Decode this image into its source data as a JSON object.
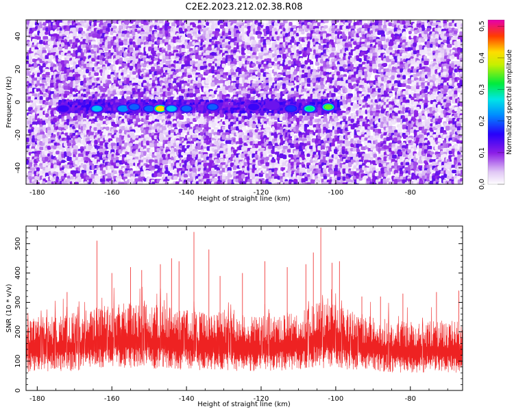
{
  "title": "C2E2.2023.212.02.38.R08",
  "colors": {
    "snr_line": "#ee2222",
    "background": "#ffffff",
    "axis": "#000000"
  },
  "colorbar": {
    "label": "Normalized spectral amplitude",
    "range": [
      0.0,
      0.52
    ],
    "tick_labels": [
      "0.0",
      "0.1",
      "0.2",
      "0.3",
      "0.4",
      "0.5"
    ],
    "ticks": [
      0.0,
      0.1,
      0.2,
      0.3,
      0.4,
      0.5
    ]
  },
  "chart_data": [
    {
      "type": "heatmap",
      "title": "C2E2.2023.212.02.38.R08",
      "xlabel": "Height of straight line (km)",
      "ylabel": "Frequency (Hz)",
      "xlim": [
        -183,
        -66
      ],
      "ylim": [
        -50,
        50
      ],
      "x_ticks": [
        -180,
        -160,
        -140,
        -120,
        -100,
        -80
      ],
      "x_tick_labels": [
        "-180",
        "-160",
        "-140",
        "-120",
        "-100",
        "-80"
      ],
      "y_ticks": [
        -40,
        -20,
        0,
        20,
        40
      ],
      "y_tick_labels": [
        "-40",
        "-20",
        "0",
        "20",
        "40"
      ],
      "colormap": "rainbow (white → purple → blue → cyan → green → yellow → red → magenta)",
      "features": [
        {
          "description": "band of high amplitude near 0 Hz",
          "x_range": [
            -174,
            -99
          ],
          "frequency_hz": -3,
          "peak_amplitude": 0.42
        },
        {
          "description": "uniform background noise",
          "amplitude_range": [
            0.0,
            0.12
          ]
        }
      ],
      "hot_spots": [
        {
          "x": -173,
          "f": -4,
          "a": 0.15
        },
        {
          "x": -164,
          "f": -4,
          "a": 0.25
        },
        {
          "x": -157,
          "f": -4,
          "a": 0.22
        },
        {
          "x": -154,
          "f": -3,
          "a": 0.2
        },
        {
          "x": -150,
          "f": -4,
          "a": 0.2
        },
        {
          "x": -147,
          "f": -4,
          "a": 0.42
        },
        {
          "x": -144,
          "f": -4,
          "a": 0.25
        },
        {
          "x": -140,
          "f": -4,
          "a": 0.2
        },
        {
          "x": -133,
          "f": -3,
          "a": 0.2
        },
        {
          "x": -122,
          "f": -3,
          "a": 0.15
        },
        {
          "x": -117,
          "f": -2,
          "a": 0.12
        },
        {
          "x": -112,
          "f": -4,
          "a": 0.18
        },
        {
          "x": -107,
          "f": -4,
          "a": 0.3
        },
        {
          "x": -102,
          "f": -3,
          "a": 0.35
        }
      ]
    },
    {
      "type": "line",
      "xlabel": "Height of straight line (km)",
      "ylabel": "SNR (10 * v/v)",
      "xlim": [
        -183,
        -66
      ],
      "ylim": [
        0,
        560
      ],
      "x_ticks": [
        -180,
        -160,
        -140,
        -120,
        -100,
        -80
      ],
      "x_tick_labels": [
        "-180",
        "-160",
        "-140",
        "-120",
        "-100",
        "-80"
      ],
      "y_ticks": [
        0,
        100,
        200,
        300,
        400,
        500
      ],
      "y_tick_labels": [
        "0",
        "100",
        "200",
        "300",
        "400",
        "500"
      ],
      "series": [
        {
          "color": "#ee2222",
          "x_range": [
            -183,
            -66
          ],
          "baseline_envelope": {
            "low": 60,
            "high": 240
          },
          "profile": [
            [
              -183,
              180
            ],
            [
              -175,
              185
            ],
            [
              -170,
              190
            ],
            [
              -165,
              200
            ],
            [
              -160,
              210
            ],
            [
              -155,
              215
            ],
            [
              -150,
              210
            ],
            [
              -145,
              205
            ],
            [
              -140,
              200
            ],
            [
              -135,
              195
            ],
            [
              -130,
              190
            ],
            [
              -125,
              185
            ],
            [
              -120,
              180
            ],
            [
              -115,
              190
            ],
            [
              -110,
              200
            ],
            [
              -105,
              215
            ],
            [
              -100,
              210
            ],
            [
              -95,
              190
            ],
            [
              -90,
              180
            ],
            [
              -85,
              175
            ],
            [
              -80,
              170
            ],
            [
              -75,
              170
            ],
            [
              -70,
              170
            ],
            [
              -66,
              175
            ]
          ],
          "peaks": [
            {
              "x": -172,
              "y": 335
            },
            {
              "x": -164,
              "y": 510
            },
            {
              "x": -160,
              "y": 400
            },
            {
              "x": -155,
              "y": 420
            },
            {
              "x": -152,
              "y": 410
            },
            {
              "x": -147,
              "y": 430
            },
            {
              "x": -144,
              "y": 450
            },
            {
              "x": -142,
              "y": 440
            },
            {
              "x": -138,
              "y": 540
            },
            {
              "x": -134,
              "y": 480
            },
            {
              "x": -131,
              "y": 390
            },
            {
              "x": -125,
              "y": 400
            },
            {
              "x": -119,
              "y": 440
            },
            {
              "x": -113,
              "y": 420
            },
            {
              "x": -108,
              "y": 430
            },
            {
              "x": -106,
              "y": 470
            },
            {
              "x": -104,
              "y": 555
            },
            {
              "x": -101,
              "y": 435
            },
            {
              "x": -99,
              "y": 440
            },
            {
              "x": -93,
              "y": 320
            },
            {
              "x": -88,
              "y": 320
            },
            {
              "x": -82,
              "y": 330
            },
            {
              "x": -73,
              "y": 335
            },
            {
              "x": -67,
              "y": 340
            }
          ]
        }
      ]
    }
  ]
}
